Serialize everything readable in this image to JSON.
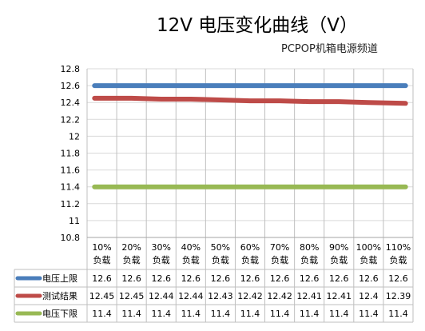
{
  "chart_data": {
    "type": "line",
    "title": "12V 电压变化曲线（V）",
    "subtitle": "PCPOP机箱电源频道",
    "categories": [
      [
        "10%",
        "负载"
      ],
      [
        "20%",
        "负载"
      ],
      [
        "30%",
        "负载"
      ],
      [
        "40%",
        "负载"
      ],
      [
        "50%",
        "负载"
      ],
      [
        "60%",
        "负载"
      ],
      [
        "70%",
        "负载"
      ],
      [
        "80%",
        "负载"
      ],
      [
        "90%",
        "负载"
      ],
      [
        "100%",
        "负载"
      ],
      [
        "110%",
        "负载"
      ]
    ],
    "yticks": [
      "12.8",
      "12.6",
      "12.4",
      "12.2",
      "12",
      "11.8",
      "11.6",
      "11.4",
      "11.2",
      "11",
      "10.8"
    ],
    "ylim": [
      10.8,
      12.8
    ],
    "grid": true,
    "series": [
      {
        "name": "电压上限",
        "color": "#4a7ebb",
        "values": [
          12.6,
          12.6,
          12.6,
          12.6,
          12.6,
          12.6,
          12.6,
          12.6,
          12.6,
          12.6,
          12.6
        ],
        "labels": [
          "12.6",
          "12.6",
          "12.6",
          "12.6",
          "12.6",
          "12.6",
          "12.6",
          "12.6",
          "12.6",
          "12.6",
          "12.6"
        ]
      },
      {
        "name": "测试结果",
        "color": "#be4b48",
        "values": [
          12.45,
          12.45,
          12.44,
          12.44,
          12.43,
          12.42,
          12.42,
          12.41,
          12.41,
          12.4,
          12.39
        ],
        "labels": [
          "12.45",
          "12.45",
          "12.44",
          "12.44",
          "12.43",
          "12.42",
          "12.42",
          "12.41",
          "12.41",
          "12.4",
          "12.39"
        ]
      },
      {
        "name": "电压下限",
        "color": "#98b954",
        "values": [
          11.4,
          11.4,
          11.4,
          11.4,
          11.4,
          11.4,
          11.4,
          11.4,
          11.4,
          11.4,
          11.4
        ],
        "labels": [
          "11.4",
          "11.4",
          "11.4",
          "11.4",
          "11.4",
          "11.4",
          "11.4",
          "11.4",
          "11.4",
          "11.4",
          "11.4"
        ]
      }
    ]
  }
}
